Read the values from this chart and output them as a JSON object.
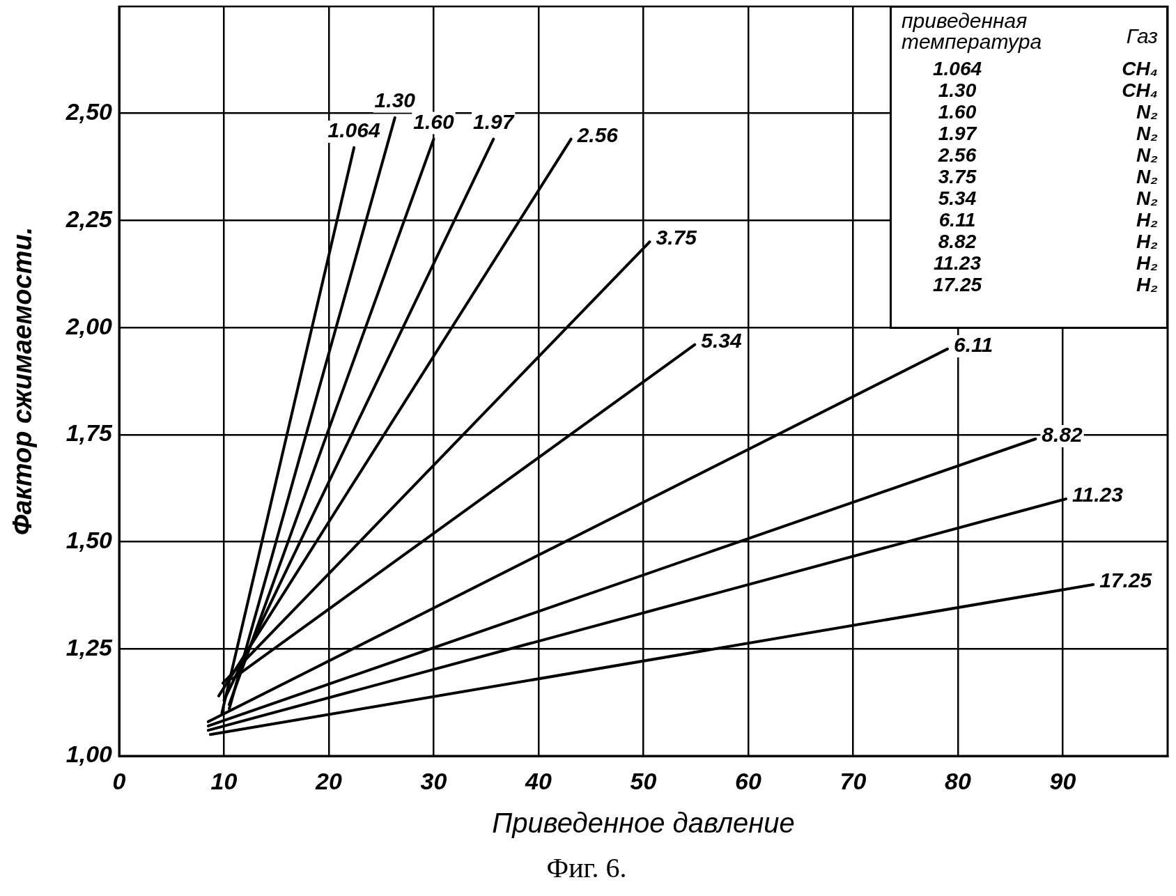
{
  "chart_data": {
    "type": "line",
    "title": "Фиг. 6.",
    "xlabel": "Приведенное давление",
    "ylabel": "Фактор сжимаемости.",
    "legend_title": "приведенная температура",
    "annotations": [
      "Газ",
      "CH₄",
      "CH₄",
      "N₂",
      "N₂",
      "N₂",
      "N₂",
      "N₂",
      "H₂",
      "H₂",
      "H₂",
      "H₂"
    ],
    "xlim": [
      0,
      100
    ],
    "xticks": [
      0,
      10,
      20,
      30,
      40,
      50,
      60,
      70,
      80,
      90
    ],
    "ylim": [
      1,
      2.75
    ],
    "yticks": [
      {
        "value": 1,
        "label": "1,00"
      },
      {
        "value": 1.25,
        "label": "1,25"
      },
      {
        "value": 1.5,
        "label": "1,50"
      },
      {
        "value": 1.75,
        "label": "1,75"
      },
      {
        "value": 2,
        "label": "2,00"
      },
      {
        "value": 2.25,
        "label": "2,25"
      },
      {
        "value": 2.5,
        "label": "2,50"
      }
    ],
    "grid": true,
    "legend": "top right",
    "marker": "none",
    "line_style": "solid",
    "series": [
      {
        "name": "1.064",
        "color": "#000000",
        "x": [
          9.8,
          22.4
        ],
        "values": [
          1.1,
          2.42
        ]
      },
      {
        "name": "1.30",
        "color": "#000000",
        "x": [
          10.5,
          26.3
        ],
        "values": [
          1.11,
          2.49
        ]
      },
      {
        "name": "1.60",
        "color": "#000000",
        "x": [
          10.5,
          30.0
        ],
        "values": [
          1.12,
          2.44
        ]
      },
      {
        "name": "1.97",
        "color": "#000000",
        "x": [
          10.0,
          35.7
        ],
        "values": [
          1.13,
          2.44
        ]
      },
      {
        "name": "2.56",
        "color": "#000000",
        "x": [
          9.5,
          43.1
        ],
        "values": [
          1.14,
          2.44
        ]
      },
      {
        "name": "3.75",
        "color": "#000000",
        "x": [
          9.9,
          50.6
        ],
        "values": [
          1.17,
          2.2
        ]
      },
      {
        "name": "5.34",
        "color": "#000000",
        "x": [
          10.8,
          54.9
        ],
        "values": [
          1.18,
          1.96
        ]
      },
      {
        "name": "6.11",
        "color": "#000000",
        "x": [
          8.5,
          79.0
        ],
        "values": [
          1.08,
          1.95
        ]
      },
      {
        "name": "8.82",
        "color": "#000000",
        "x": [
          8.5,
          87.4
        ],
        "values": [
          1.07,
          1.74
        ]
      },
      {
        "name": "11.23",
        "color": "#000000",
        "x": [
          8.5,
          90.3
        ],
        "values": [
          1.06,
          1.6
        ]
      },
      {
        "name": "17.25",
        "color": "#000000",
        "x": [
          8.7,
          92.9
        ],
        "values": [
          1.05,
          1.4
        ]
      }
    ]
  }
}
